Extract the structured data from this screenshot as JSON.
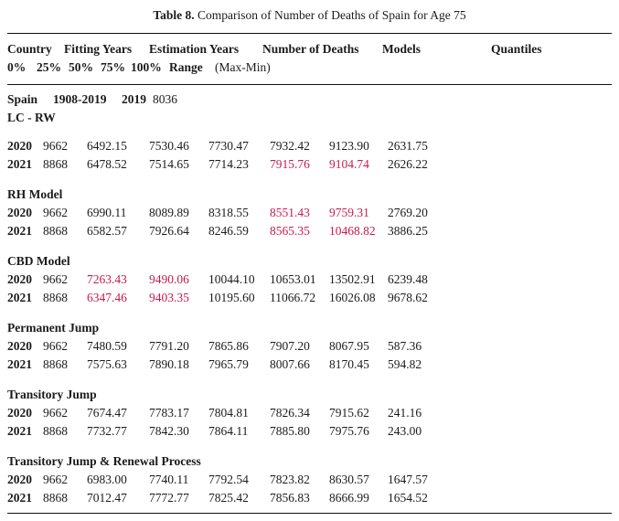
{
  "colors": {
    "highlight": "#c81a50",
    "text": "#1b1b1b",
    "rule": "#111111",
    "background": "#ffffff"
  },
  "title": {
    "label": "Table 8.",
    "text": "Comparison of Number of Deaths of Spain for Age 75"
  },
  "header": {
    "columns": {
      "country": "Country",
      "fitting_years": "Fitting Years",
      "estimation_years": "Estimation Years",
      "number_of_deaths": "Number of Deaths",
      "models": "Models",
      "quantiles": "Quantiles"
    },
    "quantile_columns": {
      "q0": "0%",
      "q25": "25%",
      "q50": "50%",
      "q75": "75%",
      "q100": "100%",
      "range": "Range",
      "range_note": "(Max-Min)"
    }
  },
  "country_row": {
    "country": "Spain",
    "fitting_years": "1908-2019",
    "estimation_years": "2019",
    "number_of_deaths": "8036"
  },
  "sections": [
    {
      "model": "LC - RW",
      "rows": [
        {
          "year": "2020",
          "deaths": "9662",
          "q0": "6492.15",
          "q25": "7530.46",
          "q50": "7730.47",
          "q75": "7932.42",
          "q100": "9123.90",
          "range": "2631.75"
        },
        {
          "year": "2021",
          "deaths": "8868",
          "q0": "6478.52",
          "q25": "7514.65",
          "q50": "7714.23",
          "q75": "7915.76",
          "q100": "9104.74",
          "range": "2626.22",
          "hl": {
            "q75": true,
            "q100": true
          }
        }
      ]
    },
    {
      "model": "RH Model",
      "rows": [
        {
          "year": "2020",
          "deaths": "9662",
          "q0": "6990.11",
          "q25": "8089.89",
          "q50": "8318.55",
          "q75": "8551.43",
          "q100": "9759.31",
          "range": "2769.20",
          "hl": {
            "q75": true,
            "q100": true
          }
        },
        {
          "year": "2021",
          "deaths": "8868",
          "q0": "6582.57",
          "q25": "7926.64",
          "q50": "8246.59",
          "q75": "8565.35",
          "q100": "10468.82",
          "range": "3886.25",
          "hl": {
            "q75": true,
            "q100": true
          }
        }
      ]
    },
    {
      "model": "CBD Model",
      "rows": [
        {
          "year": "2020",
          "deaths": "9662",
          "q0": "7263.43",
          "q25": "9490.06",
          "q50": "10044.10",
          "q75": "10653.01",
          "q100": "13502.91",
          "range": "6239.48",
          "hl": {
            "q0": true,
            "q25": true
          }
        },
        {
          "year": "2021",
          "deaths": "8868",
          "q0": "6347.46",
          "q25": "9403.35",
          "q50": "10195.60",
          "q75": "11066.72",
          "q100": "16026.08",
          "range": "9678.62",
          "hl": {
            "q0": true,
            "q25": true
          }
        }
      ]
    },
    {
      "model": "Permanent Jump",
      "rows": [
        {
          "year": "2020",
          "deaths": "9662",
          "q0": "7480.59",
          "q25": "7791.20",
          "q50": "7865.86",
          "q75": "7907.20",
          "q100": "8067.95",
          "range": "587.36"
        },
        {
          "year": "2021",
          "deaths": "8868",
          "q0": "7575.63",
          "q25": "7890.18",
          "q50": "7965.79",
          "q75": "8007.66",
          "q100": "8170.45",
          "range": "594.82"
        }
      ]
    },
    {
      "model": "Transitory Jump",
      "rows": [
        {
          "year": "2020",
          "deaths": "9662",
          "q0": "7674.47",
          "q25": "7783.17",
          "q50": "7804.81",
          "q75": "7826.34",
          "q100": "7915.62",
          "range": "241.16"
        },
        {
          "year": "2021",
          "deaths": "8868",
          "q0": "7732.77",
          "q25": "7842.30",
          "q50": "7864.11",
          "q75": "7885.80",
          "q100": "7975.76",
          "range": "243.00"
        }
      ]
    },
    {
      "model": "Transitory Jump & Renewal Process",
      "rows": [
        {
          "year": "2020",
          "deaths": "9662",
          "q0": "6983.00",
          "q25": "7740.11",
          "q50": "7792.54",
          "q75": "7823.82",
          "q100": "8630.57",
          "range": "1647.57"
        },
        {
          "year": "2021",
          "deaths": "8868",
          "q0": "7012.47",
          "q25": "7772.77",
          "q50": "7825.42",
          "q75": "7856.83",
          "q100": "8666.99",
          "range": "1654.52"
        }
      ]
    }
  ]
}
